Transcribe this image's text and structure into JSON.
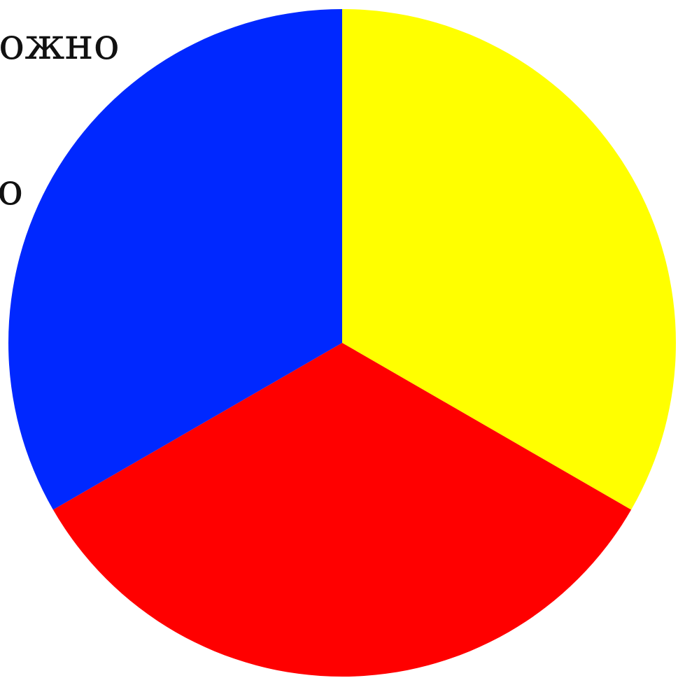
{
  "text_fragments": [
    "ожно",
    "о"
  ],
  "chart_data": {
    "type": "pie",
    "start_angle_deg": 0,
    "direction": "clockwise",
    "values": [
      {
        "value": 1,
        "color": "#ffff00"
      },
      {
        "value": 1,
        "color": "#ff0000"
      },
      {
        "value": 1,
        "color": "#0028ff"
      }
    ]
  }
}
